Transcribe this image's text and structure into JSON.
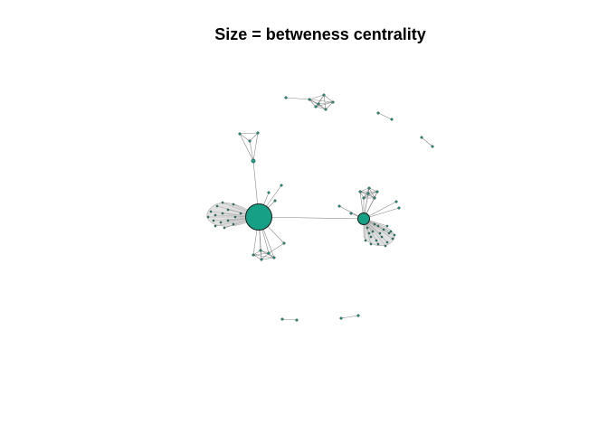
{
  "title": "Size = betweness centrality",
  "colors": {
    "node_fill": "#16a085",
    "node_stroke": "#1b1b1b",
    "edge": "#8a8a8a"
  },
  "graph": {
    "components": [
      {
        "name": "main-two-hub-network",
        "hubs": [
          "hub-large",
          "hub-small"
        ]
      },
      {
        "name": "top-cluster"
      },
      {
        "name": "pair-top-right-1"
      },
      {
        "name": "pair-top-right-2"
      },
      {
        "name": "pair-bottom-1"
      },
      {
        "name": "pair-bottom-2"
      }
    ]
  }
}
